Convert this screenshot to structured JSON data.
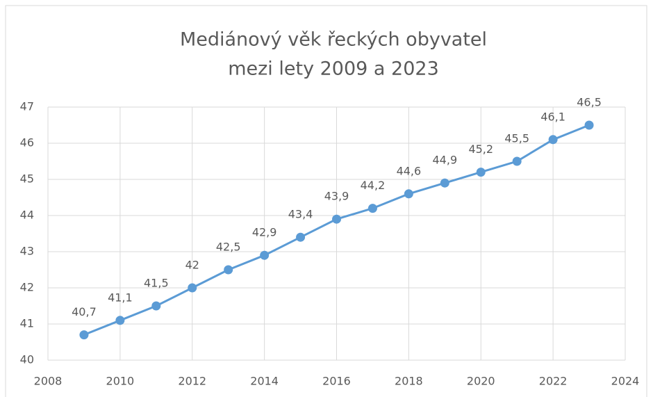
{
  "chart_data": {
    "type": "line",
    "title": [
      "Mediánový věk řeckých obyvatel",
      "mezi lety 2009 a 2023"
    ],
    "x": [
      2009,
      2010,
      2011,
      2012,
      2013,
      2014,
      2015,
      2016,
      2017,
      2018,
      2019,
      2020,
      2021,
      2022,
      2023
    ],
    "values": [
      40.7,
      41.1,
      41.5,
      42,
      42.5,
      42.9,
      43.4,
      43.9,
      44.2,
      44.6,
      44.9,
      45.2,
      45.5,
      46.1,
      46.5
    ],
    "value_labels": [
      "40,7",
      "41,1",
      "41,5",
      "42",
      "42,5",
      "42,9",
      "43,4",
      "43,9",
      "44,2",
      "44,6",
      "44,9",
      "45,2",
      "45,5",
      "46,1",
      "46,5"
    ],
    "color": "#5b9bd5",
    "xlim": [
      2008,
      2024
    ],
    "xticks": [
      2008,
      2010,
      2012,
      2014,
      2016,
      2018,
      2020,
      2022,
      2024
    ],
    "ylim": [
      40,
      47
    ],
    "yticks": [
      40,
      41,
      42,
      43,
      44,
      45,
      46,
      47
    ],
    "grid": true
  }
}
